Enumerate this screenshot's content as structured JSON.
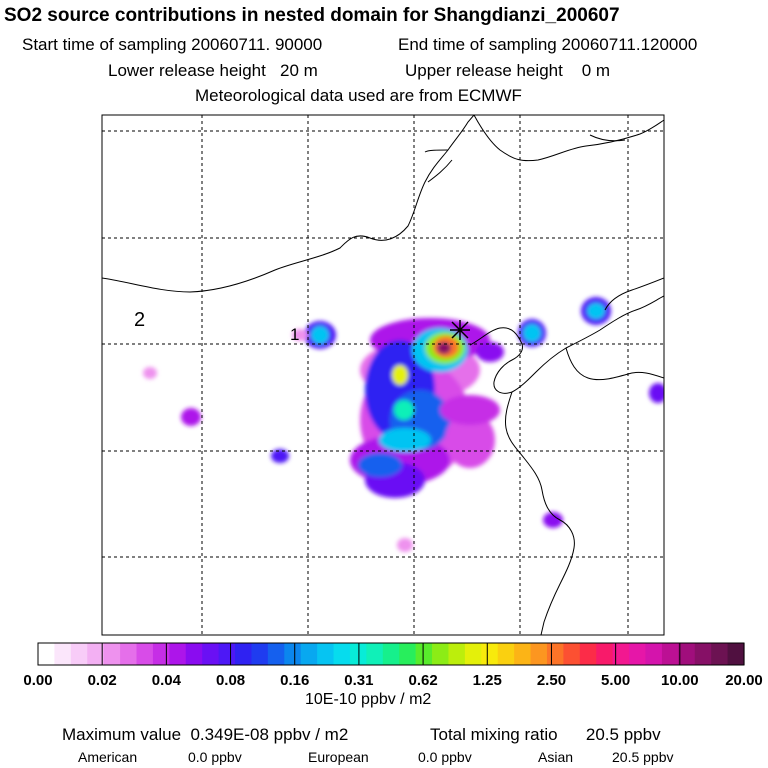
{
  "header": {
    "title": "SO2 source contributions in nested domain for Shangdianzi_200607",
    "start": "Start time of sampling 20060711. 90000",
    "end": "End time of sampling 20060711.120000",
    "lower": "Lower release height   20 m",
    "upper": "Upper release height    0 m",
    "met": "Meteorological data used are from ECMWF"
  },
  "map": {
    "contour_labels": [
      "2",
      "1"
    ],
    "site_marker": "star-marker-icon",
    "grid": true
  },
  "chart_data": {
    "type": "heatmap",
    "title": "SO2 source contributions in nested domain for Shangdianzi_200607",
    "colorbar": {
      "tick_labels": [
        "0.00",
        "0.02",
        "0.04",
        "0.08",
        "0.16",
        "0.31",
        "0.62",
        "1.25",
        "2.50",
        "5.00",
        "10.00",
        "20.00"
      ],
      "units": "10E-10 ppbv / m2",
      "colors": [
        "#ffffff",
        "#fbe6fb",
        "#f8ccf8",
        "#f3b0f3",
        "#ee92ee",
        "#e56fea",
        "#d84ce8",
        "#c62ee6",
        "#ad15ea",
        "#8a0cf0",
        "#6a10f4",
        "#4d18f6",
        "#2f22f2",
        "#1f3cf0",
        "#1560ee",
        "#0b86ee",
        "#08a8f0",
        "#06c4f2",
        "#06dcee",
        "#08ecd8",
        "#10f0b8",
        "#16f08c",
        "#28ee5c",
        "#58ec2c",
        "#8cec16",
        "#bcee0c",
        "#e4f00a",
        "#f8ea0c",
        "#fad010",
        "#fcb416",
        "#fc9620",
        "#fc7428",
        "#fc5032",
        "#fc2c48",
        "#f81a6a",
        "#f21890",
        "#e616a8",
        "#d414ac",
        "#bc1094",
        "#a00e7c",
        "#861066",
        "#6c1252",
        "#501040"
      ]
    },
    "summary": {
      "max_value": "Maximum value  0.349E-08 ppbv / m2",
      "total": "Total mixing ratio      20.5 ppbv",
      "american_label": "American",
      "american_value": "0.0 ppbv",
      "european_label": "European",
      "european_value": "0.0 ppbv",
      "asian_label": "Asian",
      "asian_value": "20.5 ppbv"
    }
  }
}
